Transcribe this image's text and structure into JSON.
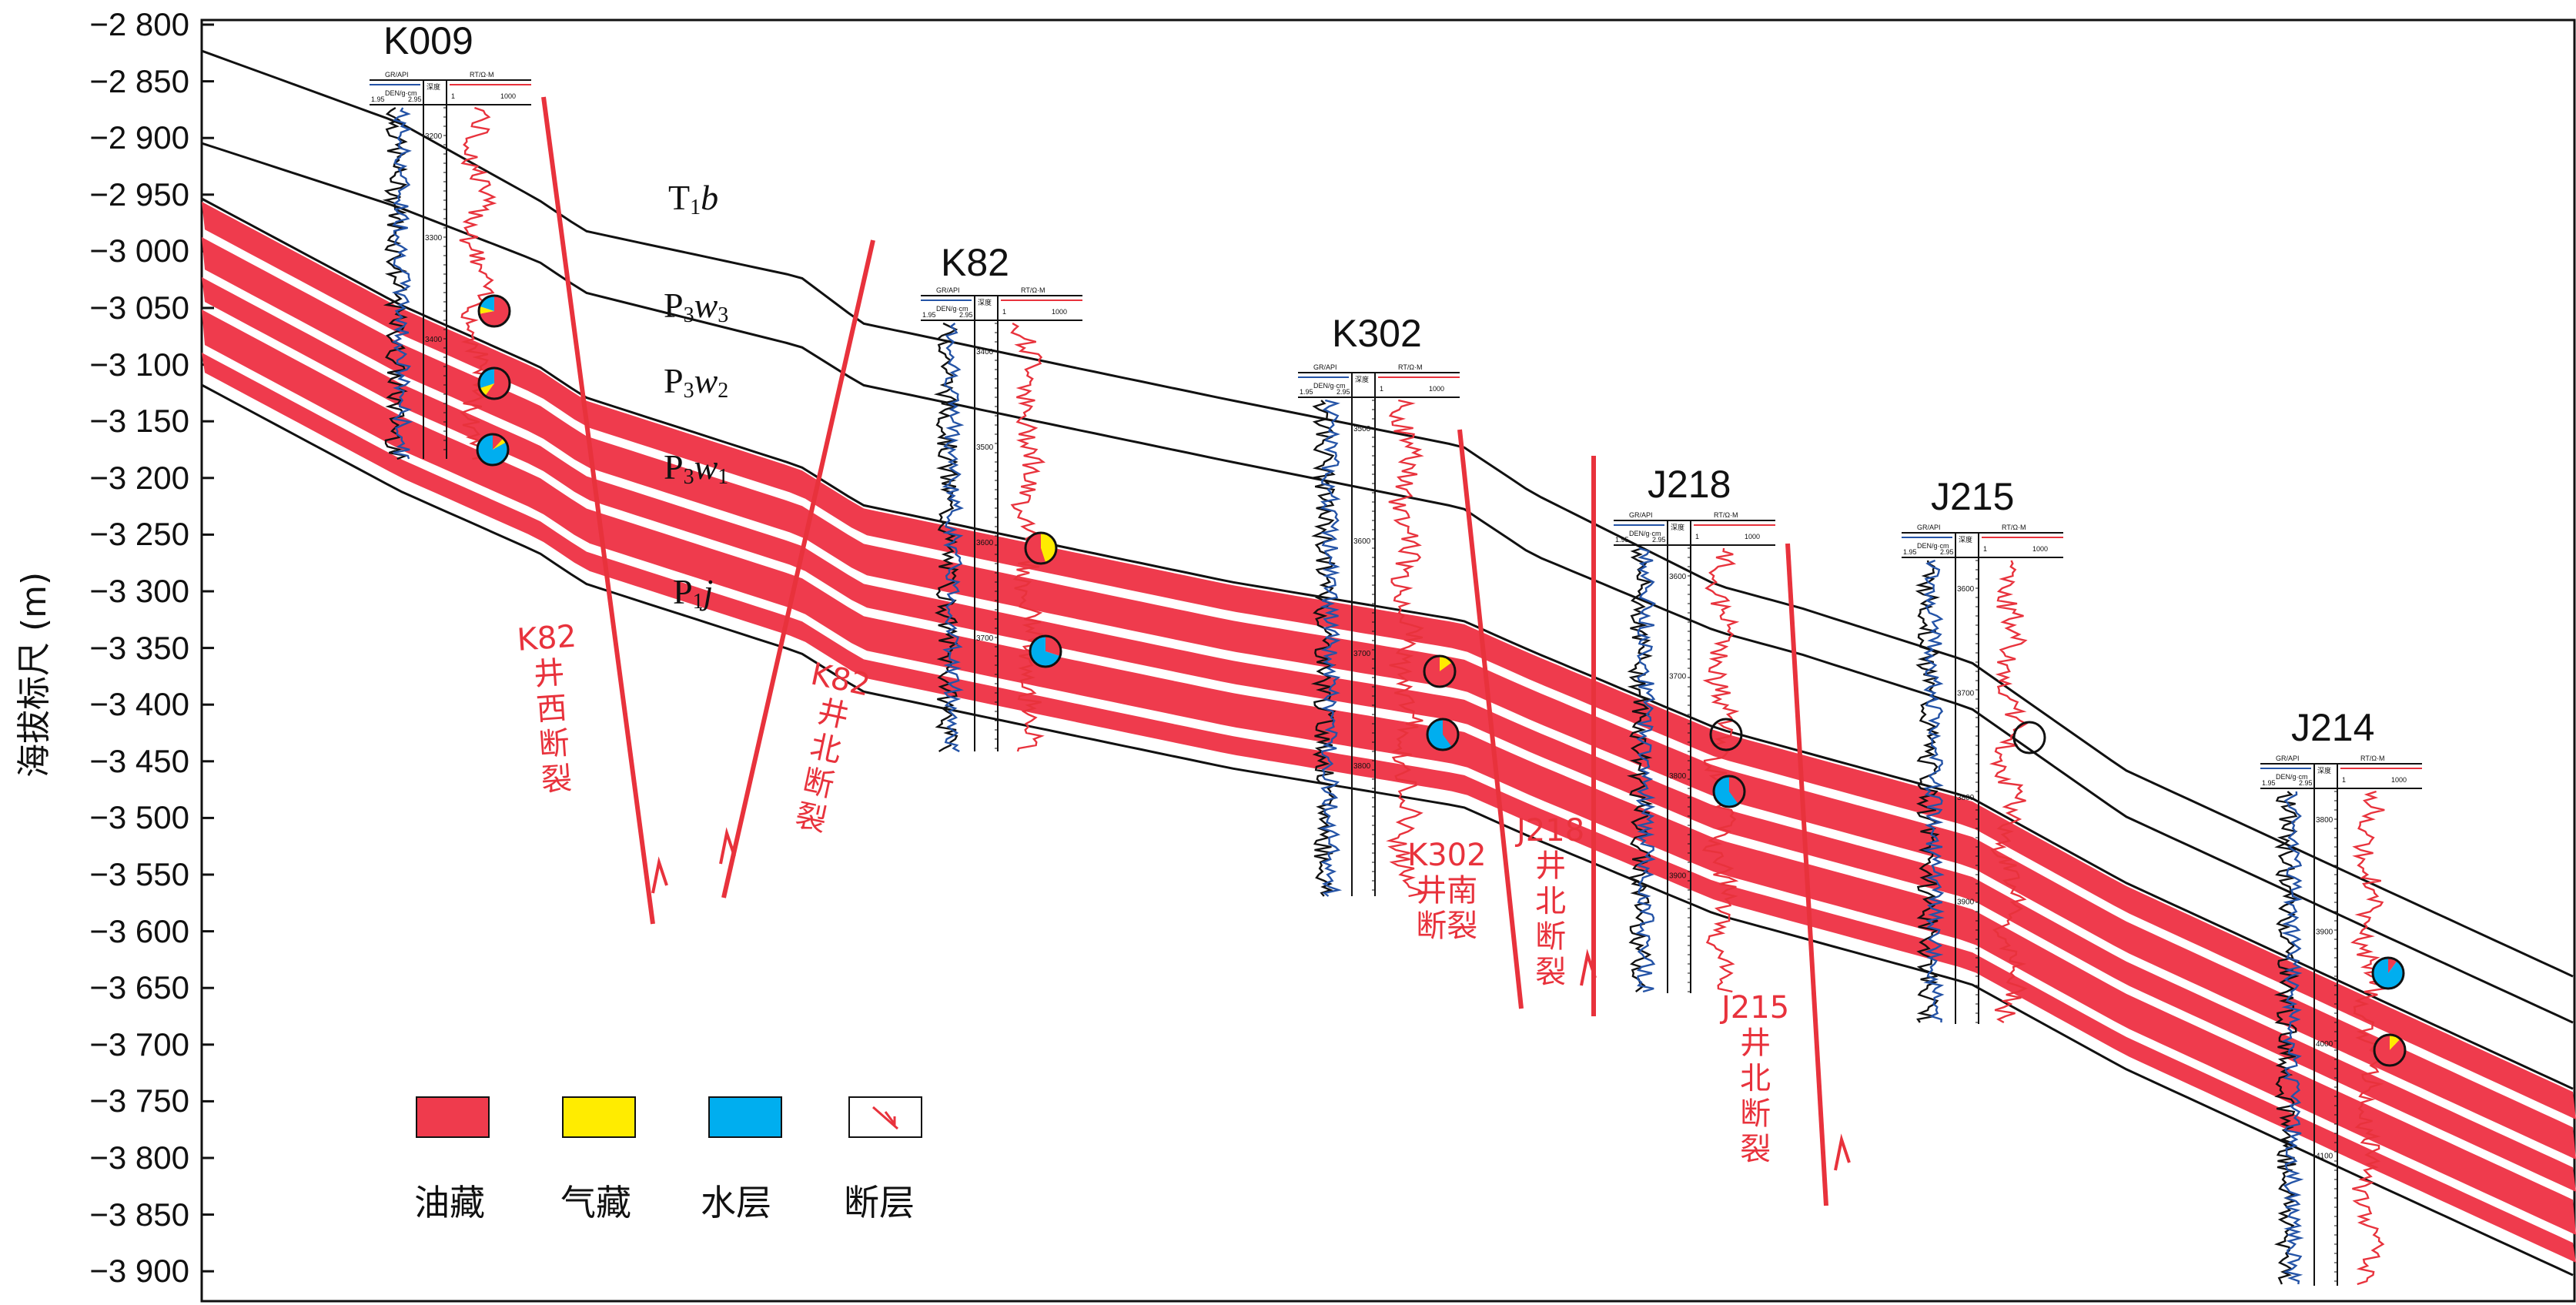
{
  "axis": {
    "label": "海拔标尺 (m)",
    "ticks": [
      "−2 800",
      "−2 850",
      "−2 900",
      "−2 950",
      "−3 000",
      "−3 050",
      "−3 100",
      "−3 150",
      "−3 200",
      "−3 250",
      "−3 300",
      "−3 350",
      "−3 400",
      "−3 450",
      "−3 500",
      "−3 550",
      "−3 600",
      "−3 650",
      "−3 700",
      "−3 750",
      "−3 800",
      "−3 850",
      "−3 900"
    ]
  },
  "wells": [
    {
      "name": "K009"
    },
    {
      "name": "K82"
    },
    {
      "name": "K302"
    },
    {
      "name": "J218"
    },
    {
      "name": "J215"
    },
    {
      "name": "J214"
    }
  ],
  "strata": {
    "t1b": {
      "base": "T",
      "sub": "1",
      "it": "b",
      "sub2": ""
    },
    "p3w3": {
      "base": "P",
      "sub": "3",
      "it": "w",
      "sub2": "3"
    },
    "p3w2": {
      "base": "P",
      "sub": "3",
      "it": "w",
      "sub2": "2"
    },
    "p3w1": {
      "base": "P",
      "sub": "3",
      "it": "w",
      "sub2": "1"
    },
    "p1j": {
      "base": "P",
      "sub": "1",
      "it": "j",
      "sub2": ""
    }
  },
  "faults": [
    {
      "lines": [
        "K82",
        "井",
        "西",
        "断",
        "裂"
      ]
    },
    {
      "lines": [
        "K82",
        "井",
        "北",
        "断",
        "裂"
      ]
    },
    {
      "lines": [
        "K302",
        "井南",
        "断裂"
      ]
    },
    {
      "lines": [
        "J218",
        "井",
        "北",
        "断",
        "裂"
      ]
    },
    {
      "lines": [
        "J215",
        "井",
        "北",
        "断",
        "裂"
      ]
    }
  ],
  "legend": {
    "items": [
      {
        "label": "油藏",
        "color": "#ef3b4d"
      },
      {
        "label": "气藏",
        "color": "#ffec00"
      },
      {
        "label": "水层",
        "color": "#00aeef"
      },
      {
        "label": "断层",
        "color": "#ffffff"
      }
    ]
  },
  "colors": {
    "oil": "#ef3b4d",
    "gas": "#ffec00",
    "water": "#00aeef",
    "fault": "#e8323c",
    "line": "#111111"
  },
  "log_header": {
    "gr": "GR/API",
    "den": "DEN/g·cm",
    "depth": "深度",
    "rt": "RT/Ω·M",
    "rt_min": "1",
    "rt_max": "1000",
    "den_min": "1.95",
    "den_max": "2.95"
  },
  "depth_marks": {
    "K009": [
      "3200",
      "3300",
      "3400"
    ],
    "K82": [
      "3400",
      "3500",
      "3600",
      "3700"
    ],
    "K302": [
      "3500",
      "3600",
      "3700",
      "3800"
    ],
    "J218": [
      "3600",
      "3700",
      "3800",
      "3900"
    ],
    "J215": [
      "3600",
      "3700",
      "3800",
      "3900"
    ],
    "J214": [
      "3800",
      "3900",
      "4000",
      "4100"
    ]
  }
}
